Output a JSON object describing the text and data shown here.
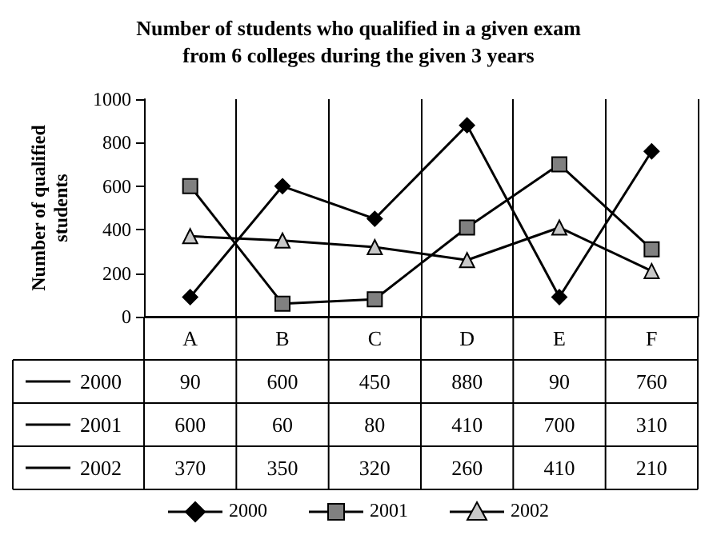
{
  "chart_data": {
    "type": "line",
    "title": "Number of students who qualified in a given exam\nfrom 6 colleges during the given 3 years",
    "ylabel": "Number of qualified\nstudents",
    "categories": [
      "A",
      "B",
      "C",
      "D",
      "E",
      "F"
    ],
    "series": [
      {
        "name": "2000",
        "color": "#000000",
        "marker": "diamond",
        "values": [
          90,
          600,
          450,
          880,
          90,
          760
        ]
      },
      {
        "name": "2001",
        "color": "#808080",
        "marker": "square",
        "values": [
          600,
          60,
          80,
          410,
          700,
          310
        ]
      },
      {
        "name": "2002",
        "color": "#c8c8c8",
        "marker": "triangle",
        "values": [
          370,
          350,
          320,
          260,
          410,
          210
        ]
      }
    ],
    "ylim": [
      0,
      1000
    ],
    "yticks": [
      0,
      200,
      400,
      600,
      800,
      1000
    ],
    "grid": "x",
    "legend": "bottom",
    "data_labels": true,
    "line_style": "solid"
  }
}
